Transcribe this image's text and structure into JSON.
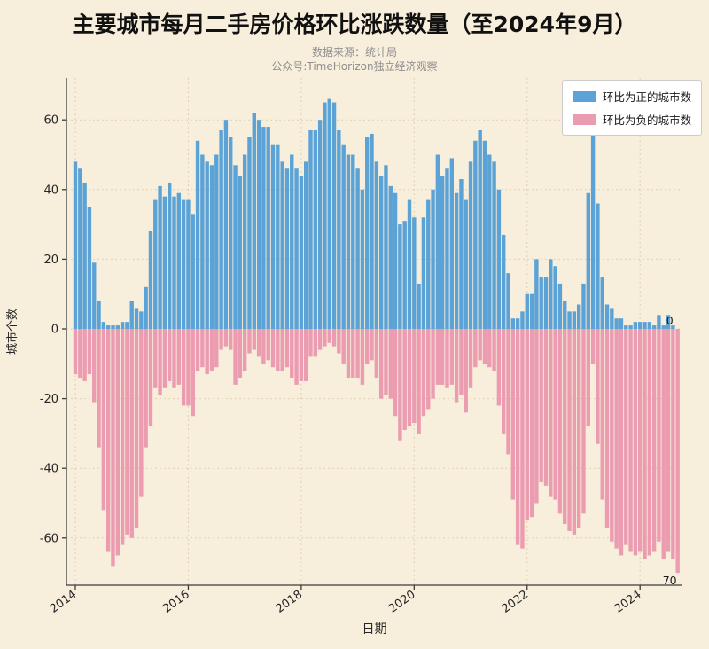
{
  "header": {
    "title": "主要城市每月二手房价格环比涨跌数量（至2024年9月）",
    "subtitle1": "数据来源：统计局",
    "subtitle2": "公众号:TimeHorizon独立经济观察"
  },
  "legend": {
    "items": [
      {
        "label": "环比为正的城市数",
        "color": "#5BA3D6"
      },
      {
        "label": "环比为负的城市数",
        "color": "#EB9CB0"
      }
    ]
  },
  "colors": {
    "background": "#F8EEDC",
    "positive_bar": "#5BA3D6",
    "negative_bar": "#EB9CB0",
    "grid": "#E0D1B2",
    "axis": "#3C3C3C",
    "tick_text": "#262626",
    "annotation_text": "#1A1A1A"
  },
  "chart_data": {
    "type": "bar",
    "title": "主要城市每月二手房价格环比涨跌数量（至2024年9月）",
    "xlabel": "日期",
    "ylabel": "城市个数",
    "start_month": "2014-01",
    "end_month": "2024-09",
    "months_count": 129,
    "x_tick_labels": [
      "2014",
      "2016",
      "2018",
      "2020",
      "2022",
      "2024"
    ],
    "y_ticks": [
      -60,
      -40,
      -20,
      0,
      20,
      40,
      60
    ],
    "ylim": [
      -73,
      72
    ],
    "grid": true,
    "legend_position": "upper right",
    "series": [
      {
        "name": "环比为正的城市数",
        "color": "#5BA3D6",
        "values": [
          48,
          46,
          42,
          35,
          19,
          8,
          2,
          1,
          1,
          1,
          2,
          2,
          8,
          6,
          5,
          12,
          28,
          37,
          41,
          38,
          42,
          38,
          39,
          37,
          37,
          33,
          54,
          50,
          48,
          47,
          50,
          57,
          60,
          55,
          47,
          44,
          50,
          55,
          62,
          60,
          58,
          58,
          53,
          53,
          48,
          46,
          50,
          46,
          44,
          48,
          57,
          57,
          60,
          65,
          66,
          65,
          57,
          53,
          50,
          50,
          46,
          40,
          55,
          56,
          48,
          44,
          47,
          41,
          39,
          30,
          31,
          37,
          32,
          13,
          32,
          37,
          40,
          50,
          44,
          46,
          49,
          39,
          43,
          37,
          48,
          54,
          57,
          54,
          50,
          48,
          40,
          27,
          16,
          3,
          3,
          5,
          10,
          10,
          20,
          15,
          15,
          20,
          18,
          13,
          8,
          5,
          5,
          7,
          13,
          39,
          57,
          36,
          15,
          7,
          6,
          3,
          3,
          1,
          1,
          2,
          2,
          2,
          2,
          1,
          4,
          1,
          4,
          1,
          0
        ]
      },
      {
        "name": "环比为负的城市数",
        "color": "#EB9CB0",
        "values": [
          -13,
          -14,
          -15,
          -13,
          -21,
          -34,
          -52,
          -64,
          -68,
          -65,
          -62,
          -59,
          -60,
          -57,
          -48,
          -34,
          -28,
          -17,
          -19,
          -17,
          -15,
          -17,
          -16,
          -22,
          -22,
          -25,
          -12,
          -11,
          -13,
          -12,
          -11,
          -6,
          -5,
          -6,
          -16,
          -14,
          -12,
          -7,
          -6,
          -8,
          -10,
          -9,
          -11,
          -12,
          -12,
          -11,
          -14,
          -16,
          -15,
          -15,
          -8,
          -8,
          -6,
          -5,
          -4,
          -5,
          -7,
          -10,
          -14,
          -14,
          -14,
          -16,
          -10,
          -9,
          -14,
          -20,
          -19,
          -20,
          -25,
          -32,
          -29,
          -28,
          -27,
          -30,
          -25,
          -23,
          -20,
          -16,
          -16,
          -17,
          -16,
          -21,
          -19,
          -24,
          -17,
          -11,
          -9,
          -10,
          -11,
          -12,
          -22,
          -30,
          -36,
          -49,
          -62,
          -63,
          -55,
          -54,
          -50,
          -44,
          -45,
          -48,
          -49,
          -53,
          -56,
          -58,
          -59,
          -57,
          -53,
          -28,
          -10,
          -33,
          -49,
          -57,
          -61,
          -63,
          -65,
          -62,
          -64,
          -65,
          -64,
          -66,
          -65,
          -64,
          -61,
          -66,
          -64,
          -66,
          -70
        ]
      }
    ],
    "annotations": [
      {
        "text": "0",
        "month": "2024-09",
        "value": 0
      },
      {
        "text": "70",
        "month": "2024-09",
        "value": -70
      }
    ]
  }
}
